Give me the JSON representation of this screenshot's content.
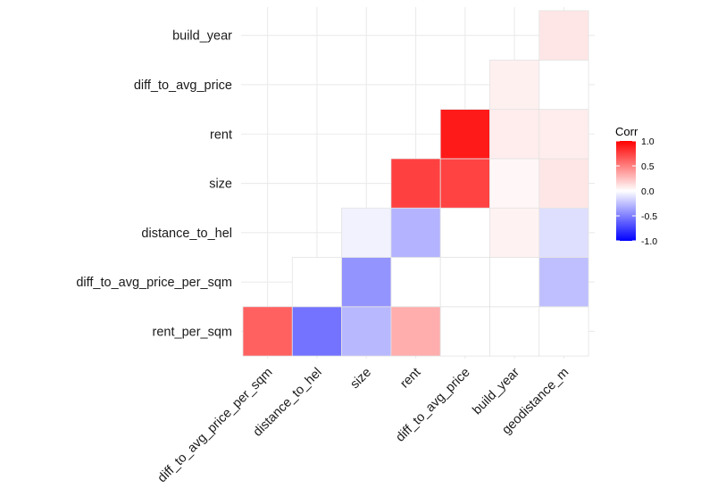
{
  "chart_data": {
    "type": "heatmap",
    "title": "",
    "xlabel": "",
    "ylabel": "",
    "x_categories": [
      "diff_to_avg_price_per_sqm",
      "distance_to_hel",
      "size",
      "rent",
      "diff_to_avg_price",
      "build_year",
      "geodistance_m"
    ],
    "y_categories": [
      "rent_per_sqm",
      "diff_to_avg_price_per_sqm",
      "distance_to_hel",
      "size",
      "rent",
      "diff_to_avg_price",
      "build_year"
    ],
    "cells": [
      {
        "x": "diff_to_avg_price_per_sqm",
        "y": "rent_per_sqm",
        "value": 0.62
      },
      {
        "x": "distance_to_hel",
        "y": "rent_per_sqm",
        "value": -0.55
      },
      {
        "x": "size",
        "y": "rent_per_sqm",
        "value": -0.28
      },
      {
        "x": "rent",
        "y": "rent_per_sqm",
        "value": 0.32
      },
      {
        "x": "diff_to_avg_price",
        "y": "rent_per_sqm",
        "value": 0.0
      },
      {
        "x": "build_year",
        "y": "rent_per_sqm",
        "value": 0.0
      },
      {
        "x": "geodistance_m",
        "y": "rent_per_sqm",
        "value": 0.0
      },
      {
        "x": "distance_to_hel",
        "y": "diff_to_avg_price_per_sqm",
        "value": 0.0
      },
      {
        "x": "size",
        "y": "diff_to_avg_price_per_sqm",
        "value": -0.42
      },
      {
        "x": "rent",
        "y": "diff_to_avg_price_per_sqm",
        "value": 0.0
      },
      {
        "x": "diff_to_avg_price",
        "y": "diff_to_avg_price_per_sqm",
        "value": 0.0
      },
      {
        "x": "build_year",
        "y": "diff_to_avg_price_per_sqm",
        "value": 0.0
      },
      {
        "x": "geodistance_m",
        "y": "diff_to_avg_price_per_sqm",
        "value": -0.25
      },
      {
        "x": "size",
        "y": "distance_to_hel",
        "value": -0.05
      },
      {
        "x": "rent",
        "y": "distance_to_hel",
        "value": -0.3
      },
      {
        "x": "diff_to_avg_price",
        "y": "distance_to_hel",
        "value": 0.0
      },
      {
        "x": "build_year",
        "y": "distance_to_hel",
        "value": 0.05
      },
      {
        "x": "geodistance_m",
        "y": "distance_to_hel",
        "value": -0.13
      },
      {
        "x": "rent",
        "y": "size",
        "value": 0.75
      },
      {
        "x": "diff_to_avg_price",
        "y": "size",
        "value": 0.74
      },
      {
        "x": "build_year",
        "y": "size",
        "value": 0.03
      },
      {
        "x": "geodistance_m",
        "y": "size",
        "value": 0.1
      },
      {
        "x": "diff_to_avg_price",
        "y": "rent",
        "value": 0.9
      },
      {
        "x": "build_year",
        "y": "rent",
        "value": 0.07
      },
      {
        "x": "geodistance_m",
        "y": "rent",
        "value": 0.07
      },
      {
        "x": "build_year",
        "y": "diff_to_avg_price",
        "value": 0.06
      },
      {
        "x": "geodistance_m",
        "y": "diff_to_avg_price",
        "value": 0.0
      },
      {
        "x": "geodistance_m",
        "y": "build_year",
        "value": 0.1
      }
    ],
    "color_scale": {
      "low": "#0000ff",
      "mid": "#ffffff",
      "high": "#ff0000",
      "limits": [
        -1,
        1
      ]
    },
    "grid": true,
    "legend": {
      "title": "Corr",
      "placement": "right",
      "ticks": [
        1.0,
        0.5,
        0.0,
        -0.5,
        -1.0
      ],
      "tick_labels": [
        "1.0",
        "0.5",
        "0.0",
        "-0.5",
        "-1.0"
      ]
    }
  }
}
